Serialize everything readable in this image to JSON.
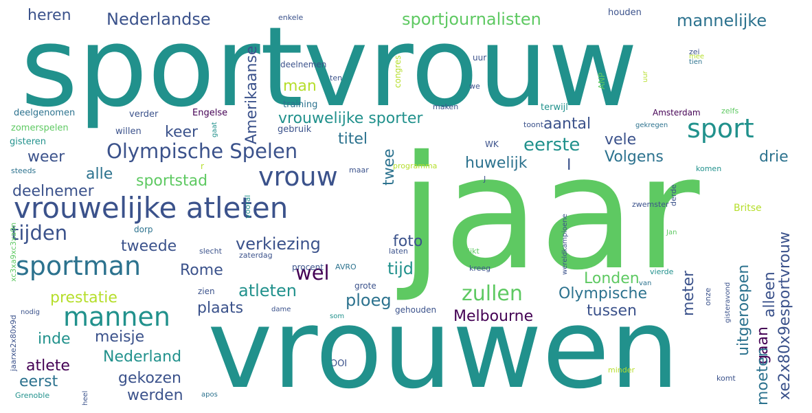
{
  "words": [
    {
      "text": "sportvrouw",
      "color": "#21918c"
    },
    {
      "text": "jaar",
      "color": "#5ec962"
    },
    {
      "text": "vrouwen",
      "color": "#21918c"
    },
    {
      "text": "vrouwelijke atleten",
      "color": "#3b528b"
    },
    {
      "text": "Olympische Spelen",
      "color": "#3b528b"
    },
    {
      "text": "sportman",
      "color": "#2c728e"
    },
    {
      "text": "mannen",
      "color": "#21918c"
    },
    {
      "text": "vrouw",
      "color": "#3b528b"
    },
    {
      "text": "sport",
      "color": "#21918c"
    },
    {
      "text": "Nederlandse",
      "color": "#3b528b"
    },
    {
      "text": "heren",
      "color": "#3b528b"
    },
    {
      "text": "sportjournalisten",
      "color": "#5ec962"
    },
    {
      "text": "mannelijke",
      "color": "#2c728e"
    },
    {
      "text": "vrouwelijke sporter",
      "color": "#21918c"
    },
    {
      "text": "eerste",
      "color": "#21918c"
    },
    {
      "text": "aantal",
      "color": "#3b528b"
    },
    {
      "text": "titel",
      "color": "#2c728e"
    },
    {
      "text": "vele",
      "color": "#3b528b"
    },
    {
      "text": "Volgens",
      "color": "#2c728e"
    },
    {
      "text": "huwelijk",
      "color": "#2c728e"
    },
    {
      "text": "drie",
      "color": "#2c728e"
    },
    {
      "text": "keer",
      "color": "#3b528b"
    },
    {
      "text": "weer",
      "color": "#3b528b"
    },
    {
      "text": "alle",
      "color": "#2c728e"
    },
    {
      "text": "sportstad",
      "color": "#5ec962"
    },
    {
      "text": "deelnemer",
      "color": "#3b528b"
    },
    {
      "text": "tijden",
      "color": "#3b528b"
    },
    {
      "text": "verkiezing",
      "color": "#3b528b"
    },
    {
      "text": "foto",
      "color": "#3b528b"
    },
    {
      "text": "tweede",
      "color": "#3b528b"
    },
    {
      "text": "Rome",
      "color": "#3b528b"
    },
    {
      "text": "wel",
      "color": "#440154"
    },
    {
      "text": "tijd",
      "color": "#21918c"
    },
    {
      "text": "Londen",
      "color": "#5ec962"
    },
    {
      "text": "zullen",
      "color": "#5ec962"
    },
    {
      "text": "Olympische",
      "color": "#2c728e"
    },
    {
      "text": "atleten",
      "color": "#21918c"
    },
    {
      "text": "ploeg",
      "color": "#2c728e"
    },
    {
      "text": "prestatie",
      "color": "#b5de2b"
    },
    {
      "text": "plaats",
      "color": "#3b528b"
    },
    {
      "text": "Melbourne",
      "color": "#440154"
    },
    {
      "text": "tussen",
      "color": "#3b528b"
    },
    {
      "text": "inde",
      "color": "#21918c"
    },
    {
      "text": "meisje",
      "color": "#3b528b"
    },
    {
      "text": "atlete",
      "color": "#440154"
    },
    {
      "text": "Nederland",
      "color": "#21918c"
    },
    {
      "text": "eerst",
      "color": "#2c728e"
    },
    {
      "text": "gekozen",
      "color": "#3b528b"
    },
    {
      "text": "werden",
      "color": "#3b528b"
    },
    {
      "text": "man",
      "color": "#b5de2b"
    },
    {
      "text": "I",
      "color": "#3b528b"
    },
    {
      "text": "deelgenomen",
      "color": "#2c728e"
    },
    {
      "text": "zomerspelen",
      "color": "#5ec962"
    },
    {
      "text": "gisteren",
      "color": "#21918c"
    },
    {
      "text": "steeds",
      "color": "#2c728e"
    },
    {
      "text": "verder",
      "color": "#3b528b"
    },
    {
      "text": "willen",
      "color": "#3b528b"
    },
    {
      "text": "Engelse",
      "color": "#440154"
    },
    {
      "text": "training",
      "color": "#2c728e"
    },
    {
      "text": "gebruik",
      "color": "#3b528b"
    },
    {
      "text": "maken",
      "color": "#3b528b"
    },
    {
      "text": "terwijl",
      "color": "#21918c"
    },
    {
      "text": "toont",
      "color": "#3b528b"
    },
    {
      "text": "Amsterdam",
      "color": "#440154"
    },
    {
      "text": "zelfs",
      "color": "#5ec962"
    },
    {
      "text": "gekregen",
      "color": "#2c728e"
    },
    {
      "text": "houden",
      "color": "#3b528b"
    },
    {
      "text": "tien",
      "color": "#2c728e"
    },
    {
      "text": "enkele",
      "color": "#3b528b"
    },
    {
      "text": "deelnemen",
      "color": "#3b528b"
    },
    {
      "text": "WK",
      "color": "#3b528b"
    },
    {
      "text": "programma",
      "color": "#b5de2b"
    },
    {
      "text": "maar",
      "color": "#3b528b"
    },
    {
      "text": "zwemster",
      "color": "#3b528b"
    },
    {
      "text": "komen",
      "color": "#21918c"
    },
    {
      "text": "Britse",
      "color": "#b5de2b"
    },
    {
      "text": "dorp",
      "color": "#2c728e"
    },
    {
      "text": "slecht",
      "color": "#3b528b"
    },
    {
      "text": "zaterdag",
      "color": "#3b528b"
    },
    {
      "text": "procent",
      "color": "#3b528b"
    },
    {
      "text": "laten",
      "color": "#3b528b"
    },
    {
      "text": "AVRO",
      "color": "#2c728e"
    },
    {
      "text": "lijkt",
      "color": "#5ec962"
    },
    {
      "text": "Jan",
      "color": "#5ec962"
    },
    {
      "text": "kreeg",
      "color": "#3b528b"
    },
    {
      "text": "vierde",
      "color": "#21918c"
    },
    {
      "text": "grote",
      "color": "#3b528b"
    },
    {
      "text": "zien",
      "color": "#3b528b"
    },
    {
      "text": "dame",
      "color": "#3b528b"
    },
    {
      "text": "nodig",
      "color": "#3b528b"
    },
    {
      "text": "gehouden",
      "color": "#3b528b"
    },
    {
      "text": "minder",
      "color": "#b5de2b"
    },
    {
      "text": "komt",
      "color": "#3b528b"
    },
    {
      "text": "Grenoble",
      "color": "#21918c"
    },
    {
      "text": "apos",
      "color": "#2c728e"
    },
    {
      "text": "ten",
      "color": "#3b528b"
    },
    {
      "text": "we",
      "color": "#3b528b"
    },
    {
      "text": "uur",
      "color": "#3b528b"
    },
    {
      "text": "zei",
      "color": "#3b528b"
    },
    {
      "text": "mee",
      "color": "#b5de2b"
    },
    {
      "text": "van",
      "color": "#2c728e"
    },
    {
      "text": "som",
      "color": "#21918c"
    },
    {
      "text": "Amerikaanse",
      "color": "#3b528b"
    },
    {
      "text": "twee",
      "color": "#2c728e"
    },
    {
      "text": "uitgeroepen",
      "color": "#2c728e"
    },
    {
      "text": "meter",
      "color": "#3b528b"
    },
    {
      "text": "alleen",
      "color": "#3b528b"
    },
    {
      "text": "gaan",
      "color": "#440154"
    },
    {
      "text": "moeten",
      "color": "#2c728e"
    },
    {
      "text": "xe2x80x9esportvrouw",
      "color": "#3b528b"
    },
    {
      "text": "congres",
      "color": "#b5de2b"
    },
    {
      "text": "ANP",
      "color": "#5ec962"
    },
    {
      "text": "wereldkampioene",
      "color": "#3b528b"
    },
    {
      "text": "gisteravond",
      "color": "#3b528b"
    },
    {
      "text": "derde",
      "color": "#3b528b"
    },
    {
      "text": "onze",
      "color": "#3b528b"
    },
    {
      "text": "vooral",
      "color": "#21918c"
    },
    {
      "text": "xc3xa9xc3xa9n",
      "color": "#5ec962"
    },
    {
      "text": "jaarxe2x80x9d",
      "color": "#3b528b"
    },
    {
      "text": "heel",
      "color": "#3b528b"
    },
    {
      "text": "uur",
      "color": "#b5de2b"
    },
    {
      "text": "gaat",
      "color": "#21918c"
    },
    {
      "text": "r",
      "color": "#b5de2b"
    },
    {
      "text": "J",
      "color": "#3b528b"
    },
    {
      "text": "IOC",
      "color": "#3b528b"
    }
  ]
}
